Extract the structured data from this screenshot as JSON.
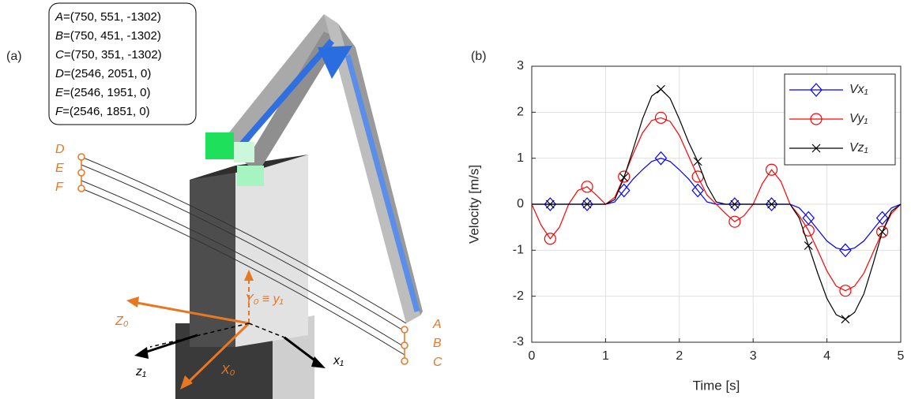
{
  "diagram": {
    "panel_label": "(a)",
    "points": [
      {
        "name": "A",
        "value": "=(750, 551, -1302)"
      },
      {
        "name": "B",
        "value": "=(750, 451, -1302)"
      },
      {
        "name": "C",
        "value": "=(750, 351, -1302)"
      },
      {
        "name": "D",
        "value": "=(2546, 2051, 0)"
      },
      {
        "name": "E",
        "value": "=(2546, 1951, 0)"
      },
      {
        "name": "F",
        "value": "=(2546, 1851, 0)"
      }
    ],
    "axis_labels": {
      "y0": "Y₀ ≡ y₁",
      "z0": "Z₀",
      "x0": "X₀",
      "z1": "z₁",
      "x1": "x₁"
    }
  },
  "chart_data": {
    "type": "line",
    "panel_label": "(b)",
    "x_label": "Time [s]",
    "y_label": "Velocity [m/s]",
    "x": [
      0,
      0.125,
      0.25,
      0.375,
      0.5,
      0.625,
      0.75,
      0.875,
      1,
      1.125,
      1.25,
      1.375,
      1.5,
      1.625,
      1.75,
      1.875,
      2,
      2.125,
      2.25,
      2.375,
      2.5,
      2.625,
      2.75,
      2.875,
      3,
      3.125,
      3.25,
      3.375,
      3.5,
      3.625,
      3.75,
      3.875,
      4,
      4.125,
      4.25,
      4.375,
      4.5,
      4.625,
      4.75,
      4.875,
      5
    ],
    "series": [
      {
        "name": "Vx₁",
        "color": "#0000ff",
        "marker": "diamond",
        "values": [
          0,
          0,
          0,
          0,
          0,
          0,
          0,
          0,
          0,
          0.05,
          0.3,
          0.55,
          0.75,
          0.93,
          1,
          0.93,
          0.75,
          0.55,
          0.3,
          0.05,
          0,
          0,
          0,
          0,
          0,
          0,
          0,
          0,
          0,
          -0.08,
          -0.3,
          -0.55,
          -0.8,
          -0.95,
          -1,
          -0.95,
          -0.8,
          -0.55,
          -0.3,
          -0.08,
          0
        ]
      },
      {
        "name": "Vy₁",
        "color": "#ff0000",
        "marker": "circle",
        "values": [
          0,
          -0.45,
          -0.75,
          -0.5,
          0,
          0.3,
          0.38,
          0.2,
          0,
          0.15,
          0.6,
          1.1,
          1.55,
          1.82,
          1.88,
          1.8,
          1.5,
          1.05,
          0.6,
          0.2,
          0,
          -0.2,
          -0.38,
          -0.25,
          0,
          0.45,
          0.75,
          0.5,
          0,
          -0.25,
          -0.57,
          -1,
          -1.45,
          -1.78,
          -1.88,
          -1.78,
          -1.5,
          -1.05,
          -0.6,
          -0.2,
          0
        ]
      },
      {
        "name": "Vz₁",
        "color": "#000000",
        "marker": "x",
        "values": [
          0,
          0,
          0,
          0,
          0,
          0,
          0,
          0,
          0,
          0.1,
          0.58,
          1.2,
          1.85,
          2.35,
          2.5,
          2.3,
          1.85,
          1.35,
          0.93,
          0.4,
          0.05,
          0,
          0,
          0,
          0,
          0,
          0,
          0,
          0,
          -0.3,
          -0.9,
          -1.5,
          -2.05,
          -2.4,
          -2.5,
          -2.35,
          -1.95,
          -1.3,
          -0.6,
          -0.15,
          0
        ]
      }
    ],
    "xlim": [
      0,
      5
    ],
    "xticks": [
      0,
      1,
      2,
      3,
      4,
      5
    ],
    "ylim": [
      -3,
      3
    ],
    "yticks": [
      -3,
      -2,
      -1,
      0,
      1,
      2,
      3
    ],
    "grid": true,
    "legend": "upper-right"
  }
}
